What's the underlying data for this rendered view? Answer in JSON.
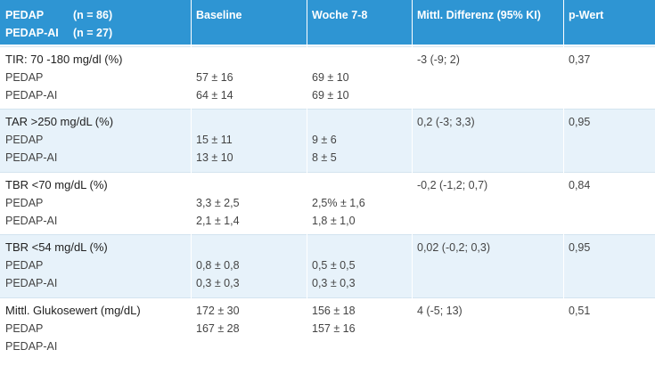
{
  "table": {
    "header": [
      [
        [
          "PEDAP",
          "(n = 86)"
        ],
        [
          "PEDAP-AI",
          "(n = 27)"
        ]
      ],
      "Baseline",
      "Woche 7-8",
      "Mittl. Differenz (95% KI)",
      "p-Wert"
    ],
    "groups": [
      [
        [
          "TIR: 70 -180 mg/dl (%)",
          null,
          null,
          "-3 (-9; 2)",
          "0,37"
        ],
        [
          "PEDAP",
          "57 ± 16",
          "69 ± 10",
          null,
          null
        ],
        [
          "PEDAP-AI",
          "64 ± 14",
          "69 ± 10",
          null,
          null
        ]
      ],
      [
        [
          "TAR >250 mg/dL (%)",
          null,
          null,
          "0,2 (-3; 3,3)",
          "0,95"
        ],
        [
          "PEDAP",
          "15 ± 11",
          "9 ± 6",
          null,
          null
        ],
        [
          "PEDAP-AI",
          "13 ± 10",
          "8 ± 5",
          null,
          null
        ]
      ],
      [
        [
          "TBR <70 mg/dL (%)",
          null,
          null,
          "-0,2 (-1,2; 0,7)",
          "0,84"
        ],
        [
          "PEDAP",
          "3,3 ± 2,5",
          "2,5% ± 1,6",
          null,
          null
        ],
        [
          "PEDAP-AI",
          "2,1 ± 1,4",
          "1,8 ± 1,0",
          null,
          null
        ]
      ],
      [
        [
          "TBR <54 mg/dL (%)",
          null,
          null,
          "0,02 (-0,2; 0,3)",
          "0,95"
        ],
        [
          "PEDAP",
          "0,8 ± 0,8",
          "0,5 ± 0,5",
          null,
          null
        ],
        [
          "PEDAP-AI",
          "0,3 ± 0,3",
          "0,3 ± 0,3",
          null,
          null
        ]
      ],
      [
        [
          "Mittl. Glukosewert (mg/dL)",
          "172 ± 30",
          "156 ± 18",
          "4 (-5; 13)",
          "0,51"
        ],
        [
          "PEDAP",
          "167 ± 28",
          "157 ± 16",
          null,
          null
        ],
        [
          "PEDAP-AI",
          null,
          null,
          null,
          null
        ]
      ]
    ]
  }
}
